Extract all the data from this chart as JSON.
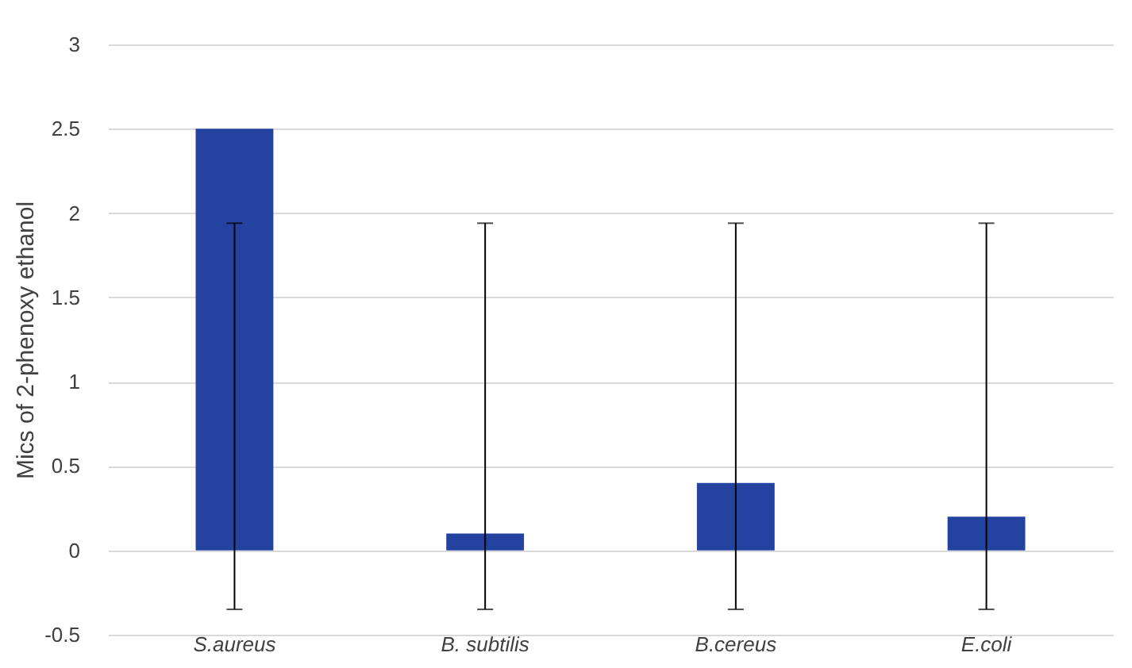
{
  "chart_data": {
    "type": "bar",
    "ylabel": "Mics of 2-phenoxy ethanol",
    "categories": [
      "S.aureus",
      "B. subtilis",
      "B.cereus",
      "E.coli"
    ],
    "values": [
      2.5,
      0.1,
      0.4,
      0.2
    ],
    "color": "#2443a0",
    "errors": [
      [
        -0.35,
        1.94
      ],
      [
        -0.35,
        1.94
      ],
      [
        -0.35,
        1.94
      ],
      [
        -0.35,
        1.94
      ]
    ],
    "ylim": [
      -0.5,
      3
    ],
    "yticks": [
      -0.5,
      0,
      0.5,
      1,
      1.5,
      2,
      2.5,
      3
    ],
    "grid": "y"
  }
}
